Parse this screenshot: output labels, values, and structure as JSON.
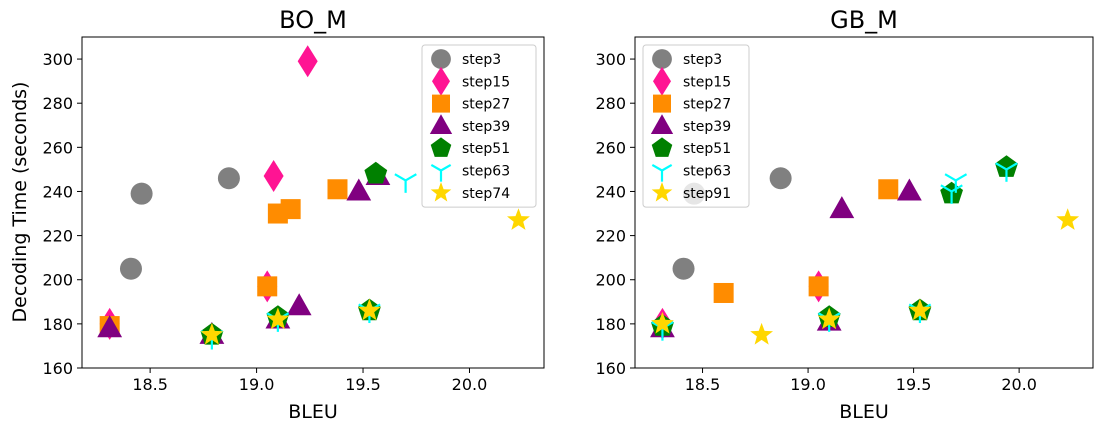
{
  "figure": {
    "ylabel": "Decoding Time (seconds)"
  },
  "marker_styles": {
    "step3": {
      "shape": "circle",
      "color": "#808080"
    },
    "step15": {
      "shape": "diamond",
      "color": "#ff1493"
    },
    "step27": {
      "shape": "square",
      "color": "#ff8c00"
    },
    "step39": {
      "shape": "triangle",
      "color": "#800080"
    },
    "step51": {
      "shape": "pentagon",
      "color": "#008000"
    },
    "step63": {
      "shape": "tri_down",
      "color": "#00ffff"
    },
    "step74": {
      "shape": "star",
      "color": "#ffd700"
    },
    "step91": {
      "shape": "star",
      "color": "#ffd700"
    }
  },
  "chart_data": [
    {
      "type": "scatter",
      "title": "BO_M",
      "xlabel": "BLEU",
      "ylabel": "Decoding Time (seconds)",
      "xlim": [
        18.18,
        20.35
      ],
      "ylim": [
        160,
        310
      ],
      "xticks": [
        "18.5",
        "19.0",
        "19.5",
        "20.0"
      ],
      "yticks": [
        "160",
        "180",
        "200",
        "220",
        "240",
        "260",
        "280",
        "300"
      ],
      "legend_position": "top-right",
      "series": [
        {
          "name": "step3",
          "points": [
            [
              18.41,
              205
            ],
            [
              18.46,
              239
            ],
            [
              18.87,
              246
            ]
          ]
        },
        {
          "name": "step15",
          "points": [
            [
              18.31,
              180
            ],
            [
              19.05,
              197
            ],
            [
              19.08,
              247
            ],
            [
              19.24,
              299
            ]
          ]
        },
        {
          "name": "step27",
          "points": [
            [
              18.31,
              179
            ],
            [
              19.05,
              197
            ],
            [
              19.1,
              230
            ],
            [
              19.16,
              232
            ],
            [
              19.38,
              241
            ]
          ]
        },
        {
          "name": "step39",
          "points": [
            [
              18.31,
              178
            ],
            [
              18.79,
              175
            ],
            [
              19.1,
              182
            ],
            [
              19.2,
              188
            ],
            [
              19.48,
              240
            ],
            [
              19.57,
              247
            ]
          ]
        },
        {
          "name": "step51",
          "points": [
            [
              18.79,
              175
            ],
            [
              19.1,
              183
            ],
            [
              19.53,
              186
            ],
            [
              19.56,
              248
            ]
          ]
        },
        {
          "name": "step63",
          "points": [
            [
              18.79,
              174
            ],
            [
              19.1,
              182
            ],
            [
              19.53,
              186
            ],
            [
              19.7,
              245
            ]
          ]
        },
        {
          "name": "step74",
          "points": [
            [
              18.79,
              175
            ],
            [
              19.1,
              182
            ],
            [
              19.53,
              186
            ],
            [
              20.23,
              227
            ]
          ]
        }
      ]
    },
    {
      "type": "scatter",
      "title": "GB_M",
      "xlabel": "BLEU",
      "ylabel": "",
      "xlim": [
        18.18,
        20.35
      ],
      "ylim": [
        160,
        310
      ],
      "xticks": [
        "18.5",
        "19.0",
        "19.5",
        "20.0"
      ],
      "yticks": [
        "160",
        "180",
        "200",
        "220",
        "240",
        "260",
        "280",
        "300"
      ],
      "legend_position": "top-left",
      "series": [
        {
          "name": "step3",
          "points": [
            [
              18.41,
              205
            ],
            [
              18.46,
              239
            ],
            [
              18.87,
              246
            ]
          ]
        },
        {
          "name": "step15",
          "points": [
            [
              18.31,
              180
            ],
            [
              19.05,
              197
            ]
          ]
        },
        {
          "name": "step27",
          "points": [
            [
              18.6,
              194
            ],
            [
              19.05,
              197
            ],
            [
              19.38,
              241
            ]
          ]
        },
        {
          "name": "step39",
          "points": [
            [
              18.31,
              178
            ],
            [
              19.1,
              181
            ],
            [
              19.16,
              232
            ],
            [
              19.48,
              240
            ]
          ]
        },
        {
          "name": "step51",
          "points": [
            [
              18.31,
              179
            ],
            [
              19.1,
              183
            ],
            [
              19.53,
              186
            ],
            [
              19.68,
              239
            ],
            [
              19.94,
              251
            ]
          ]
        },
        {
          "name": "step63",
          "points": [
            [
              18.31,
              178
            ],
            [
              19.1,
              182
            ],
            [
              19.53,
              186
            ],
            [
              19.68,
              240
            ],
            [
              19.7,
              245
            ],
            [
              19.94,
              250
            ]
          ]
        },
        {
          "name": "step91",
          "points": [
            [
              18.31,
              180
            ],
            [
              18.78,
              175
            ],
            [
              19.1,
              182
            ],
            [
              19.53,
              186
            ],
            [
              20.23,
              227
            ]
          ]
        }
      ]
    }
  ]
}
